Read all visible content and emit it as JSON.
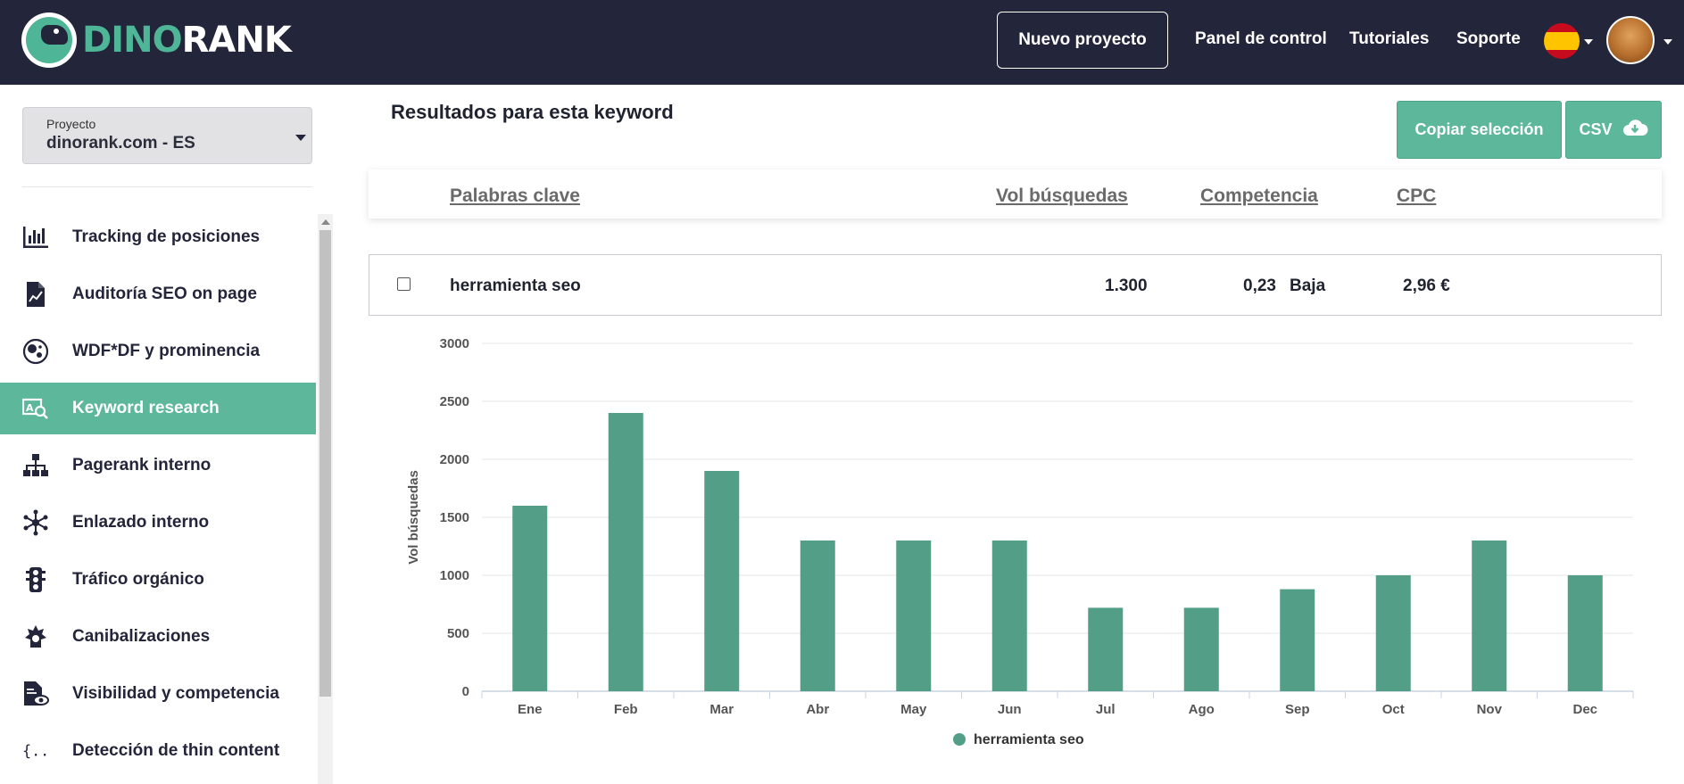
{
  "header": {
    "logo_part1": "DINO",
    "logo_part2": "RANK",
    "new_project": "Nuevo proyecto",
    "nav": [
      "Panel de control",
      "Tutoriales",
      "Soporte"
    ],
    "language_icon": "spain-flag-icon",
    "avatar_icon": "user-avatar"
  },
  "sidebar": {
    "project_label": "Proyecto",
    "project_value": "dinorank.com - ES",
    "items": [
      {
        "label": "Tracking de posiciones",
        "icon": "bar-chart-icon"
      },
      {
        "label": "Auditoría SEO on page",
        "icon": "document-chart-icon"
      },
      {
        "label": "WDF*DF y prominencia",
        "icon": "bubbles-icon"
      },
      {
        "label": "Keyword research",
        "icon": "keyword-search-icon"
      },
      {
        "label": "Pagerank interno",
        "icon": "sitemap-icon"
      },
      {
        "label": "Enlazado interno",
        "icon": "network-icon"
      },
      {
        "label": "Tráfico orgánico",
        "icon": "traffic-light-icon"
      },
      {
        "label": "Canibalizaciones",
        "icon": "cannibal-icon"
      },
      {
        "label": "Visibilidad y competencia",
        "icon": "document-eye-icon"
      },
      {
        "label": "Detección de thin content",
        "icon": "braces-icon"
      }
    ],
    "active_index": 3
  },
  "main": {
    "title": "Resultados para esta keyword",
    "copy_button": "Copiar selección",
    "csv_button": "CSV",
    "csv_icon": "cloud-download-icon",
    "columns": [
      "Palabras clave",
      "Vol búsquedas",
      "Competencia",
      "CPC"
    ],
    "row": {
      "keyword": "herramienta seo",
      "volume": "1.300",
      "competition_value": "0,23",
      "competition_level": "Baja",
      "cpc": "2,96 €"
    }
  },
  "chart_data": {
    "type": "bar",
    "categories": [
      "Ene",
      "Feb",
      "Mar",
      "Abr",
      "May",
      "Jun",
      "Jul",
      "Ago",
      "Sep",
      "Oct",
      "Nov",
      "Dec"
    ],
    "series": [
      {
        "name": "herramienta seo",
        "values": [
          1600,
          2400,
          1900,
          1300,
          1300,
          1300,
          720,
          720,
          880,
          1000,
          1300,
          1000
        ],
        "color": "#539e87"
      }
    ],
    "ylabel": "Vol búsquedas",
    "ylim": [
      0,
      3000
    ],
    "yticks": [
      0,
      500,
      1000,
      1500,
      2000,
      2500,
      3000
    ],
    "grid": true,
    "legend": "bottom-center"
  }
}
